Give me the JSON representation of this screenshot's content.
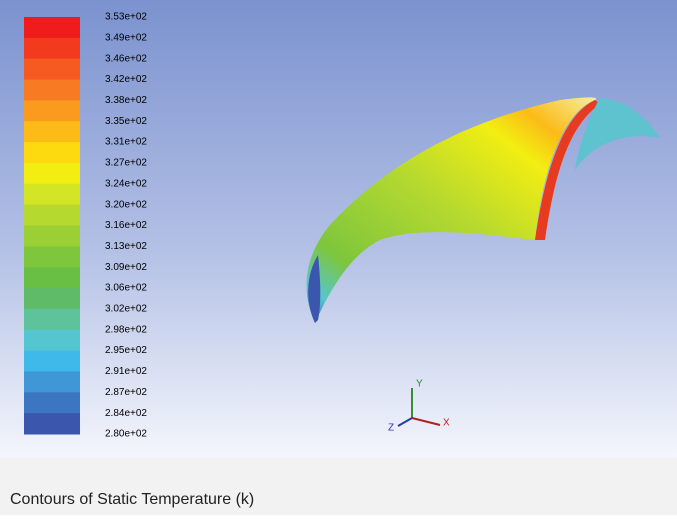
{
  "colorbar": {
    "labels": [
      "3.53e+02",
      "3.49e+02",
      "3.46e+02",
      "3.42e+02",
      "3.38e+02",
      "3.35e+02",
      "3.31e+02",
      "3.27e+02",
      "3.24e+02",
      "3.20e+02",
      "3.16e+02",
      "3.13e+02",
      "3.09e+02",
      "3.06e+02",
      "3.02e+02",
      "2.98e+02",
      "2.95e+02",
      "2.91e+02",
      "2.87e+02",
      "2.84e+02",
      "2.80e+02"
    ],
    "colors": [
      "#f01c1c",
      "#f43a1e",
      "#f75a20",
      "#f87a22",
      "#fa9a1f",
      "#fcbb17",
      "#fdd90f",
      "#f2ee12",
      "#d4e525",
      "#b6d92f",
      "#9acf36",
      "#7ec63c",
      "#68bf44",
      "#5fbb68",
      "#5ec29b",
      "#55c6cf",
      "#3fb8ea",
      "#3f97d7",
      "#3c75c2",
      "#3b56ad"
    ]
  },
  "triad": {
    "x": "X",
    "y": "Y",
    "z": "Z"
  },
  "caption": "Contours of Static Temperature (k)"
}
